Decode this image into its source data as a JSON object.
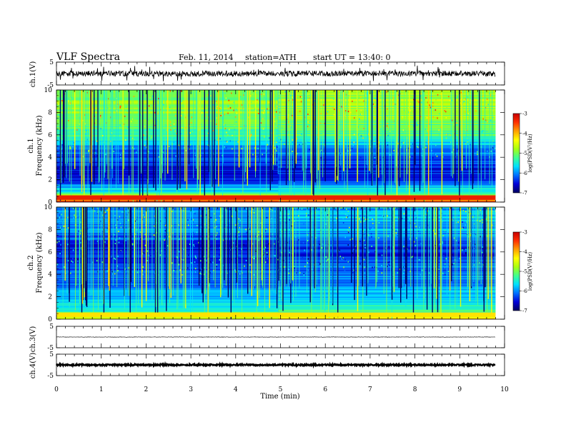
{
  "header": {
    "title": "VLF  Spectra",
    "date": "Feb. 11, 2014",
    "station": "station=ATH",
    "start": "start  UT  =   13:40: 0"
  },
  "colorbar": {
    "label": "log(PSD(V²/Hz)",
    "ticks": [
      "-3",
      "-4",
      "-5",
      "-6",
      "-7"
    ],
    "range": [
      -7,
      -3
    ],
    "colors": [
      "#000060",
      "#0000d8",
      "#0070ff",
      "#00e0ff",
      "#40ff90",
      "#a8ff10",
      "#ffff00",
      "#ffa000",
      "#ff3000",
      "#c80000"
    ]
  },
  "chart_data": [
    {
      "type": "line",
      "name": "ch1-waveform",
      "ylabel": "ch.1(V)",
      "ylim": [
        -5,
        5
      ],
      "yticks": [
        "5",
        "-5"
      ],
      "xlim": [
        0,
        10
      ],
      "baseline": 0,
      "noise_amplitude": 1.2,
      "spike_amplitude": 3.5,
      "data_end": 9.8
    },
    {
      "type": "heatmap",
      "name": "ch1-spectrogram",
      "ylabel": "ch.1\nFrequency  (kHz)",
      "ylabel_top": "ch.1",
      "ylabel_bottom": "Frequency  (kHz)",
      "ylim": [
        0,
        10
      ],
      "yticks": [
        "0",
        "2",
        "4",
        "6",
        "8",
        "10"
      ],
      "xlim": [
        0,
        10
      ],
      "data_end": 9.8,
      "zlim": [
        -7,
        -3
      ],
      "level_profile_khz": [
        0,
        0.5,
        1,
        2,
        3,
        4,
        5,
        6,
        7,
        8,
        9,
        10
      ],
      "level_profile_logpsd": [
        -3.3,
        -4.6,
        -5.6,
        -6.4,
        -6.6,
        -6.3,
        -6.0,
        -5.3,
        -5.1,
        -4.9,
        -4.9,
        -4.9
      ],
      "level_change_at_min": 4.95
    },
    {
      "type": "heatmap",
      "name": "ch2-spectrogram",
      "ylabel": "ch.2\nFrequency  (kHz)",
      "ylabel_top": "ch.2",
      "ylabel_bottom": "Frequency  (kHz)",
      "ylim": [
        0,
        10
      ],
      "yticks": [
        "0",
        "2",
        "4",
        "6",
        "8",
        "10"
      ],
      "xlim": [
        0,
        10
      ],
      "data_end": 9.8,
      "zlim": [
        -7,
        -3
      ],
      "level_profile_khz": [
        0,
        0.5,
        1,
        2,
        3,
        4,
        5,
        6,
        7,
        8,
        9,
        10
      ],
      "level_profile_logpsd": [
        -4.2,
        -5.2,
        -5.6,
        -5.8,
        -6.1,
        -6.2,
        -6.3,
        -6.6,
        -6.3,
        -6.0,
        -6.0,
        -6.0
      ],
      "level_change_at_min": 4.95
    },
    {
      "type": "line",
      "name": "ch3-waveform",
      "ylabel": "ch.3(V)",
      "ylim": [
        -5,
        5
      ],
      "yticks": [
        "5",
        "-5"
      ],
      "xlim": [
        0,
        10
      ],
      "baseline": 0,
      "noise_amplitude": 0.1,
      "data_end": 9.8
    },
    {
      "type": "line",
      "name": "ch4-waveform",
      "ylabel": "ch.4(V)",
      "ylim": [
        -5,
        5
      ],
      "yticks": [
        "5",
        "-5"
      ],
      "xlim": [
        0,
        10
      ],
      "baseline": 0,
      "noise_amplitude": 0.35,
      "data_end": 9.8
    }
  ],
  "xaxis": {
    "label": "Time  (min)",
    "ticks": [
      "0",
      "1",
      "2",
      "3",
      "4",
      "5",
      "6",
      "7",
      "8",
      "9",
      "10"
    ]
  }
}
